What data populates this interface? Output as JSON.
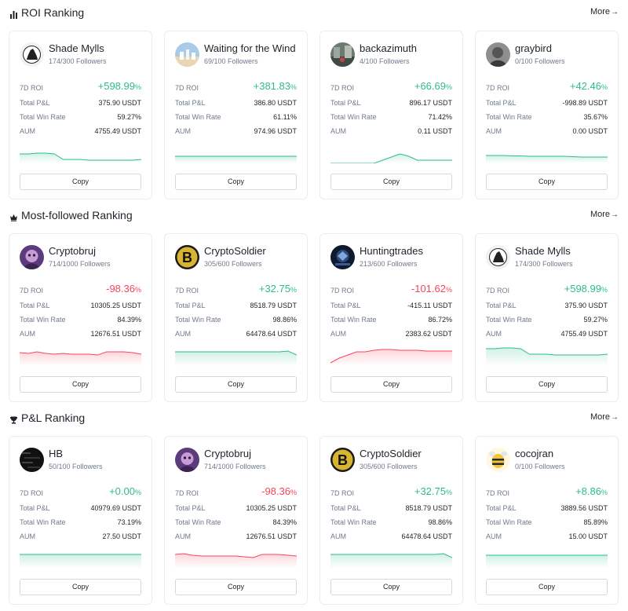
{
  "sections": [
    {
      "title": "ROI Ranking",
      "icon": "bar-chart-icon",
      "more": "More",
      "cards": [
        {
          "name": "Shade Mylls",
          "followers": "174/300 Followers",
          "roi": "+598.99",
          "pnl": "375.90 USDT",
          "win_rate": "59.27%",
          "aum": "4755.49 USDT",
          "trend": "pos",
          "avatar": "silhouette",
          "spark": [
            18,
            18,
            17,
            17,
            18,
            25,
            25,
            25,
            26,
            26,
            26,
            26,
            26,
            26,
            25
          ]
        },
        {
          "name": "Waiting for the Wind",
          "followers": "69/100 Followers",
          "roi": "+381.83",
          "pnl": "386.80 USDT",
          "win_rate": "61.11%",
          "aum": "974.96 USDT",
          "trend": "pos",
          "avatar": "sky",
          "spark": [
            21,
            21,
            21,
            21,
            21,
            21,
            21,
            21,
            21,
            21,
            21,
            21,
            21,
            21,
            21
          ]
        },
        {
          "name": "backazimuth",
          "followers": "4/100 Followers",
          "roi": "+66.69",
          "pnl": "896.17 USDT",
          "win_rate": "71.42%",
          "aum": "0.11 USDT",
          "trend": "pos",
          "avatar": "street",
          "spark": [
            30,
            30,
            30,
            30,
            30,
            30,
            26,
            22,
            18,
            21,
            26,
            26,
            26,
            26,
            26
          ]
        },
        {
          "name": "graybird",
          "followers": "0/100 Followers",
          "roi": "+42.46",
          "pnl": "-998.89 USDT",
          "win_rate": "35.67%",
          "aum": "0.00 USDT",
          "trend": "pos",
          "avatar": "gray",
          "spark": [
            20,
            20,
            20,
            20.5,
            20.5,
            21,
            21,
            21,
            21,
            21,
            21.5,
            22,
            22,
            22,
            22
          ]
        }
      ]
    },
    {
      "title": "Most-followed Ranking",
      "icon": "crown-icon",
      "more": "More",
      "cards": [
        {
          "name": "Cryptobruj",
          "followers": "714/1000 Followers",
          "roi": "-98.36",
          "pnl": "10305.25 USDT",
          "win_rate": "84.39%",
          "aum": "12676.51 USDT",
          "trend": "neg",
          "avatar": "purple",
          "spark": [
            13,
            14,
            12,
            14,
            15,
            14,
            15,
            15,
            15,
            16,
            12,
            12,
            12,
            13,
            15
          ]
        },
        {
          "name": "CryptoSoldier",
          "followers": "305/600 Followers",
          "roi": "+32.75",
          "pnl": "8518.79 USDT",
          "win_rate": "98.86%",
          "aum": "64478.64 USDT",
          "trend": "pos",
          "avatar": "soldier",
          "spark": [
            12,
            12,
            12,
            12,
            12,
            12,
            12,
            12,
            12,
            12,
            12,
            12,
            12,
            11,
            16
          ]
        },
        {
          "name": "Huntingtrades",
          "followers": "213/600 Followers",
          "roi": "-101.62",
          "pnl": "-415.11 USDT",
          "win_rate": "86.72%",
          "aum": "2383.62 USDT",
          "trend": "neg",
          "avatar": "hunting",
          "spark": [
            26,
            20,
            16,
            12,
            12,
            10,
            9,
            9,
            10,
            10,
            10,
            11,
            11,
            11,
            11
          ]
        },
        {
          "name": "Shade Mylls",
          "followers": "174/300 Followers",
          "roi": "+598.99",
          "pnl": "375.90 USDT",
          "win_rate": "59.27%",
          "aum": "4755.49 USDT",
          "trend": "pos",
          "avatar": "silhouette",
          "spark": [
            8,
            8,
            7,
            7,
            8,
            15,
            15,
            15,
            16,
            16,
            16,
            16,
            16,
            16,
            15
          ]
        }
      ]
    },
    {
      "title": "P&L Ranking",
      "icon": "trophy-icon",
      "more": "More",
      "cards": [
        {
          "name": "HB",
          "followers": "50/100 Followers",
          "roi": "+0.00",
          "pnl": "40979.69 USDT",
          "win_rate": "73.19%",
          "aum": "27.50 USDT",
          "trend": "pos",
          "avatar": "dark",
          "spark": [
            12,
            12,
            12,
            12,
            12,
            12,
            12,
            12,
            12,
            12,
            12,
            12,
            12,
            12,
            12
          ]
        },
        {
          "name": "Cryptobruj",
          "followers": "714/1000 Followers",
          "roi": "-98.36",
          "pnl": "10305.25 USDT",
          "win_rate": "84.39%",
          "aum": "12676.51 USDT",
          "trend": "neg",
          "avatar": "purple",
          "spark": [
            12,
            11,
            13,
            14,
            14,
            14,
            14,
            14,
            15,
            16,
            12,
            12,
            12,
            13,
            14
          ]
        },
        {
          "name": "CryptoSoldier",
          "followers": "305/600 Followers",
          "roi": "+32.75",
          "pnl": "8518.79 USDT",
          "win_rate": "98.86%",
          "aum": "64478.64 USDT",
          "trend": "pos",
          "avatar": "soldier",
          "spark": [
            12,
            12,
            12,
            12,
            12,
            12,
            12,
            12,
            12,
            12,
            12,
            12,
            12,
            11,
            16
          ]
        },
        {
          "name": "cocojran",
          "followers": "0/100 Followers",
          "roi": "+8.86",
          "pnl": "3889.56 USDT",
          "win_rate": "85.89%",
          "aum": "15.00 USDT",
          "trend": "pos",
          "avatar": "bee",
          "spark": [
            13,
            13,
            13,
            13,
            13,
            13,
            13,
            13,
            13,
            13,
            13,
            13,
            13,
            13,
            13
          ]
        }
      ]
    }
  ],
  "labels": {
    "roi": "7D ROI",
    "pnl": "Total P&L",
    "win_rate": "Total Win Rate",
    "aum": "AUM",
    "copy": "Copy",
    "pct": "%",
    "arrow": "→"
  },
  "colors": {
    "positive": "#2ebd85",
    "negative": "#f6465d",
    "text": "#1e2329",
    "muted": "#707a8a",
    "border": "#eaecef"
  }
}
